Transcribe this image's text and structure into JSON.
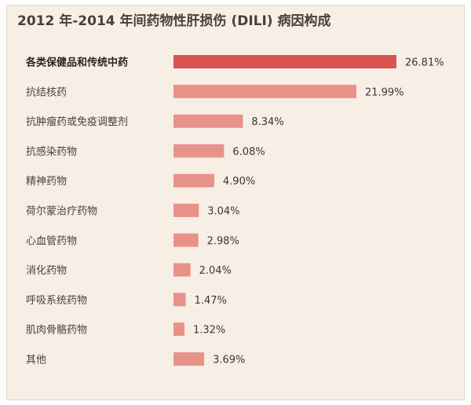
{
  "chart_data": {
    "type": "bar",
    "orientation": "horizontal",
    "title": "2012 年-2014 年间药物性肝损伤 (DILI) 病因构成",
    "categories": [
      "各类保健品和传统中药",
      "抗结核药",
      "抗肿瘤药或免疫调整剂",
      "抗感染药物",
      "精神药物",
      "荷尔蒙治疗药物",
      "心血管药物",
      "消化药物",
      "呼吸系统药物",
      "肌肉骨骼药物",
      "其他"
    ],
    "values": [
      26.81,
      21.99,
      8.34,
      6.08,
      4.9,
      3.04,
      2.98,
      2.04,
      1.47,
      1.32,
      3.69
    ],
    "value_labels": [
      "26.81%",
      "21.99%",
      "8.34%",
      "6.08%",
      "4.90%",
      "3.04%",
      "2.98%",
      "2.04%",
      "1.47%",
      "1.32%",
      "3.69%"
    ],
    "xlim": [
      0,
      26.81
    ],
    "grid": false,
    "legend": "none",
    "colors": {
      "highlight": "#d9534f",
      "bar": "#e8928a",
      "background": "#f7efe5"
    }
  }
}
